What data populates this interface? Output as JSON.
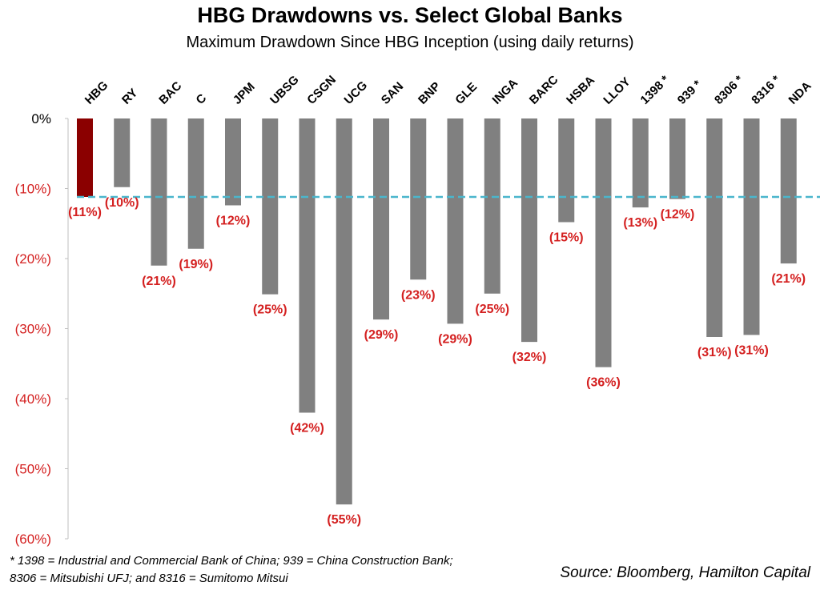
{
  "chart_data": {
    "type": "bar",
    "title": "HBG Drawdowns vs. Select Global Banks",
    "subtitle": "Maximum Drawdown Since HBG Inception (using daily returns)",
    "categories": [
      "HBG",
      "RY",
      "BAC",
      "C",
      "JPM",
      "UBSG",
      "CSGN",
      "UCG",
      "SAN",
      "BNP",
      "GLE",
      "INGA",
      "BARC",
      "HSBA",
      "LLOY",
      "1398 *",
      "939 *",
      "8306 *",
      "8316 *",
      "NDA"
    ],
    "values": [
      -11.2,
      -9.8,
      -21.0,
      -18.6,
      -12.4,
      -25.1,
      -42.0,
      -55.1,
      -28.7,
      -23.0,
      -29.3,
      -25.0,
      -31.9,
      -14.8,
      -35.5,
      -12.7,
      -11.5,
      -31.2,
      -30.9,
      -20.7
    ],
    "data_labels": [
      "(11%)",
      "(10%)",
      "(21%)",
      "(19%)",
      "(12%)",
      "(25%)",
      "(42%)",
      "(55%)",
      "(29%)",
      "(23%)",
      "(29%)",
      "(25%)",
      "(32%)",
      "(15%)",
      "(36%)",
      "(13%)",
      "(12%)",
      "(31%)",
      "(31%)",
      "(21%)"
    ],
    "y_ticks": [
      0,
      -10,
      -20,
      -30,
      -40,
      -50,
      -60
    ],
    "y_tick_labels": [
      "0%",
      "(10%)",
      "(20%)",
      "(30%)",
      "(40%)",
      "(50%)",
      "(60%)"
    ],
    "ylim": [
      -60,
      0
    ],
    "reference_line": -11.2,
    "grid": false,
    "colors": {
      "highlight": "#8b0000",
      "bar": "#808080",
      "label": "#d42020",
      "reference_line": "#4ab6cc"
    }
  },
  "footnote": {
    "line1": "* 1398 = Industrial and Commercial Bank of China; 939 = China Construction Bank;",
    "line2": "8306 = Mitsubishi UFJ; and 8316 = Sumitomo Mitsui"
  },
  "source": "Source: Bloomberg, Hamilton Capital"
}
